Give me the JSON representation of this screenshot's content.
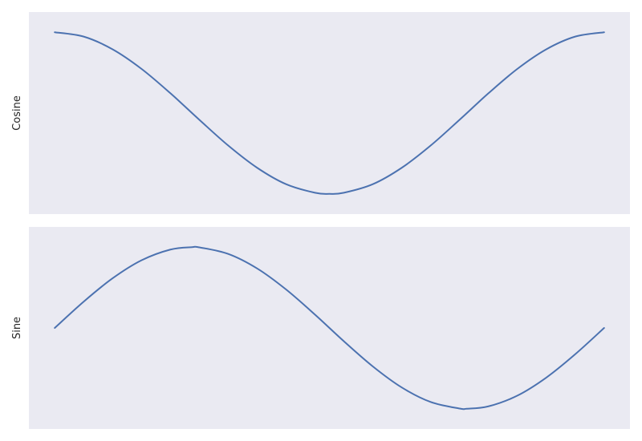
{
  "chart_data": [
    {
      "type": "line",
      "title": "",
      "xlabel": "",
      "ylabel": "Cosine",
      "grid": false,
      "xticks": [],
      "yticks": [],
      "xlim": [
        0,
        6.283
      ],
      "ylim": [
        -1.25,
        1.25
      ],
      "series": [
        {
          "color": "#4c72b0",
          "x": [
            0,
            0.3307,
            0.6614,
            0.9921,
            1.3228,
            1.6535,
            1.9842,
            2.3149,
            2.6456,
            2.9763,
            3.1416,
            3.307,
            3.6377,
            3.9684,
            4.2991,
            4.6298,
            4.9605,
            5.2912,
            5.6219,
            5.9526,
            6.2832
          ],
          "y": [
            1.0,
            0.946,
            0.789,
            0.547,
            0.245,
            -0.083,
            -0.402,
            -0.677,
            -0.88,
            -0.986,
            -1.0,
            -0.986,
            -0.88,
            -0.677,
            -0.402,
            -0.083,
            0.245,
            0.547,
            0.789,
            0.946,
            1.0
          ]
        }
      ]
    },
    {
      "type": "line",
      "title": "",
      "xlabel": "",
      "ylabel": "Sine",
      "grid": false,
      "xticks": [],
      "yticks": [],
      "xlim": [
        0,
        6.283
      ],
      "ylim": [
        -1.25,
        1.25
      ],
      "series": [
        {
          "color": "#4c72b0",
          "x": [
            0,
            0.3307,
            0.6614,
            0.9921,
            1.3228,
            1.5708,
            1.6535,
            1.9842,
            2.3149,
            2.6456,
            2.9763,
            3.307,
            3.6377,
            3.9684,
            4.2991,
            4.6298,
            4.7124,
            4.9605,
            5.2912,
            5.6219,
            5.9526,
            6.2832
          ],
          "y": [
            0.0,
            0.325,
            0.614,
            0.837,
            0.97,
            1.0,
            0.997,
            0.916,
            0.736,
            0.476,
            0.165,
            -0.165,
            -0.476,
            -0.736,
            -0.916,
            -0.997,
            -1.0,
            -0.97,
            -0.837,
            -0.614,
            -0.325,
            0.0
          ]
        }
      ]
    }
  ],
  "style": {
    "panel_background": "#eaeaf2",
    "line_color": "#4c72b0",
    "page_background": "#ffffff"
  }
}
